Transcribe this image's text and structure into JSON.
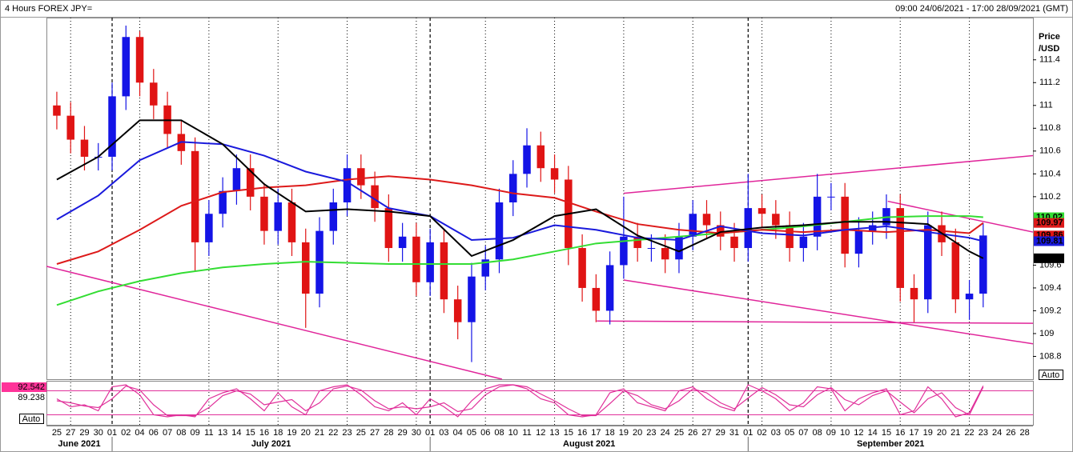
{
  "chart_data": {
    "type": "candlestick",
    "title": "4 Hours FOREX JPY=",
    "range_label": "09:00 24/06/2021 - 17:00 28/09/2021 (GMT)",
    "y_axis_label": [
      "Price",
      "/USD"
    ],
    "price_scale_button": "Auto",
    "osc_scale_button": "Auto",
    "xlim": [
      -0.75,
      70.6
    ],
    "ylim": [
      108.6,
      111.77
    ],
    "yticks": [
      111.4,
      111.2,
      111,
      110.8,
      110.6,
      110.4,
      110.2,
      109.6,
      109.4,
      109.2,
      109,
      108.8
    ],
    "x_labels": [
      "25",
      "27",
      "29",
      "30",
      "01",
      "02",
      "04",
      "06",
      "07",
      "08",
      "09",
      "11",
      "13",
      "14",
      "15",
      "16",
      "18",
      "19",
      "20",
      "21",
      "22",
      "23",
      "25",
      "27",
      "28",
      "29",
      "30",
      "01",
      "03",
      "04",
      "05",
      "06",
      "08",
      "10",
      "11",
      "12",
      "13",
      "15",
      "16",
      "17",
      "18",
      "19",
      "20",
      "23",
      "24",
      "25",
      "26",
      "27",
      "29",
      "31",
      "01",
      "02",
      "03",
      "05",
      "07",
      "08",
      "09",
      "10",
      "12",
      "14",
      "15",
      "16",
      "17",
      "19",
      "20",
      "21",
      "22",
      "23",
      "24",
      "26",
      "28"
    ],
    "months": [
      {
        "label": "June 2021",
        "start": -0.75
      },
      {
        "label": "July 2021",
        "start": 4
      },
      {
        "label": "August 2021",
        "start": 27
      },
      {
        "label": "September 2021",
        "start": 50
      }
    ],
    "up_color": "#1414e6",
    "down_color": "#e01414",
    "open": [
      111.0,
      110.91,
      110.7,
      110.55,
      110.55,
      111.08,
      111.6,
      111.2,
      111.0,
      110.75,
      110.6,
      109.8,
      110.05,
      110.25,
      110.45,
      110.2,
      109.9,
      110.15,
      109.8,
      109.35,
      109.9,
      110.15,
      110.45,
      110.3,
      110.1,
      109.75,
      109.85,
      109.45,
      109.8,
      109.3,
      109.1,
      109.5,
      109.65,
      110.15,
      110.4,
      110.65,
      110.45,
      110.35,
      109.75,
      109.4,
      109.2,
      109.6,
      109.85,
      109.75,
      109.75,
      109.65,
      109.85,
      110.05,
      109.95,
      109.85,
      109.75,
      110.1,
      110.05,
      109.95,
      109.75,
      109.85,
      110.2,
      110.2,
      109.7,
      109.9,
      109.95,
      110.1,
      109.4,
      109.3,
      109.95,
      109.8,
      109.3,
      109.35
    ],
    "high": [
      111.12,
      111.03,
      110.82,
      110.67,
      111.2,
      111.7,
      111.65,
      111.32,
      111.12,
      110.87,
      110.72,
      110.17,
      110.37,
      110.57,
      110.57,
      110.32,
      110.27,
      110.27,
      109.92,
      110.02,
      110.27,
      110.57,
      110.57,
      110.42,
      110.22,
      109.97,
      109.97,
      109.92,
      109.92,
      109.42,
      109.62,
      109.77,
      110.27,
      110.52,
      110.8,
      110.77,
      110.57,
      110.47,
      109.87,
      109.52,
      109.72,
      110.2,
      109.97,
      109.87,
      109.87,
      109.97,
      110.17,
      110.17,
      110.07,
      109.97,
      110.4,
      110.22,
      110.17,
      110.07,
      109.97,
      110.4,
      110.32,
      110.32,
      110.02,
      110.07,
      110.22,
      110.22,
      109.52,
      110.07,
      110.07,
      109.92,
      109.47,
      109.97
    ],
    "low": [
      110.79,
      110.58,
      110.43,
      110.43,
      110.43,
      110.96,
      111.08,
      110.88,
      110.63,
      110.48,
      109.55,
      109.68,
      109.93,
      110.13,
      110.08,
      109.78,
      109.78,
      109.68,
      109.05,
      109.23,
      109.78,
      110.03,
      110.18,
      109.98,
      109.63,
      109.63,
      109.33,
      109.33,
      109.18,
      108.95,
      108.75,
      109.38,
      109.53,
      110.03,
      110.28,
      110.33,
      110.23,
      109.6,
      109.28,
      109.1,
      109.08,
      109.48,
      109.63,
      109.63,
      109.53,
      109.53,
      109.73,
      109.83,
      109.73,
      109.63,
      109.63,
      109.93,
      109.83,
      109.63,
      109.63,
      109.73,
      110.08,
      109.58,
      109.58,
      109.78,
      109.83,
      109.28,
      109.1,
      109.18,
      109.68,
      109.18,
      109.12,
      109.23
    ],
    "close": [
      110.91,
      110.7,
      110.55,
      110.55,
      111.08,
      111.6,
      111.2,
      111.0,
      110.75,
      110.6,
      109.8,
      110.05,
      110.25,
      110.45,
      110.2,
      109.9,
      110.15,
      109.8,
      109.35,
      109.9,
      110.15,
      110.45,
      110.3,
      110.1,
      109.75,
      109.85,
      109.45,
      109.8,
      109.3,
      109.1,
      109.5,
      109.65,
      110.15,
      110.4,
      110.65,
      110.45,
      110.35,
      109.75,
      109.4,
      109.2,
      109.6,
      109.85,
      109.75,
      109.75,
      109.65,
      109.85,
      110.05,
      109.95,
      109.85,
      109.75,
      110.1,
      110.05,
      109.95,
      109.75,
      109.85,
      110.2,
      110.2,
      109.7,
      109.9,
      109.95,
      110.1,
      109.4,
      109.3,
      109.95,
      109.8,
      109.3,
      109.35,
      109.86
    ],
    "price_badge_color": "#e01414",
    "ma_x": [
      0,
      3,
      6,
      9,
      12,
      15,
      18,
      21,
      24,
      27,
      30,
      33,
      36,
      39,
      42,
      45,
      48,
      51,
      54,
      57,
      60,
      63,
      66,
      67
    ],
    "series": [
      {
        "color": "#33dd33",
        "values": [
          109.25,
          109.37,
          109.46,
          109.53,
          109.58,
          109.61,
          109.63,
          109.62,
          109.61,
          109.61,
          109.61,
          109.65,
          109.72,
          109.79,
          109.82,
          109.85,
          109.88,
          109.91,
          109.94,
          109.98,
          110.02,
          110.03,
          110.03,
          110.02
        ]
      },
      {
        "color": "#dd1a1a",
        "values": [
          109.61,
          109.72,
          109.91,
          110.12,
          110.24,
          110.28,
          110.3,
          110.35,
          110.38,
          110.35,
          110.3,
          110.23,
          110.19,
          110.07,
          109.96,
          109.91,
          109.88,
          109.91,
          109.89,
          109.91,
          109.89,
          109.91,
          109.88,
          109.97
        ]
      },
      {
        "color": "#1a1adc",
        "values": [
          110.0,
          110.21,
          110.52,
          110.68,
          110.66,
          110.56,
          110.42,
          110.33,
          110.1,
          110.03,
          109.82,
          109.84,
          109.95,
          109.91,
          109.84,
          109.82,
          109.94,
          109.88,
          109.86,
          109.91,
          109.94,
          109.89,
          109.84,
          109.81
        ]
      },
      {
        "color": "#000000",
        "values": [
          110.35,
          110.55,
          110.87,
          110.87,
          110.66,
          110.31,
          110.07,
          110.09,
          110.07,
          110.03,
          109.68,
          109.82,
          110.03,
          110.09,
          109.86,
          109.72,
          109.89,
          109.93,
          109.95,
          109.98,
          109.98,
          109.96,
          109.72,
          109.66
        ]
      }
    ],
    "trendline_color": "#e0259a",
    "trendlines": [
      {
        "x": [
          -0.75,
          32.2
        ],
        "y": [
          109.59,
          108.6
        ]
      },
      {
        "x": [
          41,
          70.6
        ],
        "y": [
          110.23,
          110.56
        ]
      },
      {
        "x": [
          41,
          70.6
        ],
        "y": [
          109.47,
          108.91
        ]
      },
      {
        "x": [
          39.05,
          70.6
        ],
        "y": [
          109.11,
          109.09
        ]
      },
      {
        "x": [
          60.1,
          70.6
        ],
        "y": [
          110.16,
          109.89
        ]
      }
    ],
    "oscillator": {
      "color": "#e0309a",
      "ylim": [
        -5,
        105
      ],
      "levels": [
        80,
        20
      ],
      "badge_color": "#ff3399",
      "series": [
        {
          "values": [
            60,
            40,
            45,
            30,
            90,
            95,
            70,
            20,
            15,
            20,
            15,
            60,
            75,
            85,
            60,
            30,
            75,
            40,
            20,
            80,
            90,
            95,
            70,
            40,
            30,
            50,
            20,
            60,
            40,
            15,
            55,
            85,
            95,
            95,
            85,
            60,
            50,
            20,
            15,
            20,
            75,
            85,
            50,
            40,
            30,
            80,
            90,
            60,
            40,
            30,
            95,
            80,
            60,
            30,
            50,
            90,
            85,
            30,
            60,
            75,
            85,
            20,
            30,
            90,
            60,
            15,
            25,
            92.542
          ]
        },
        {
          "values": [
            55,
            50,
            42,
            38,
            60,
            92,
            82,
            45,
            18,
            18,
            18,
            38,
            68,
            80,
            72,
            45,
            52,
            58,
            30,
            50,
            85,
            92,
            82,
            55,
            35,
            40,
            35,
            40,
            50,
            28,
            35,
            70,
            90,
            95,
            90,
            72,
            55,
            35,
            18,
            18,
            48,
            80,
            68,
            45,
            35,
            55,
            85,
            75,
            50,
            35,
            62,
            88,
            70,
            45,
            40,
            70,
            88,
            58,
            45,
            68,
            80,
            52,
            25,
            60,
            75,
            38,
            20,
            89.238
          ]
        }
      ]
    }
  }
}
